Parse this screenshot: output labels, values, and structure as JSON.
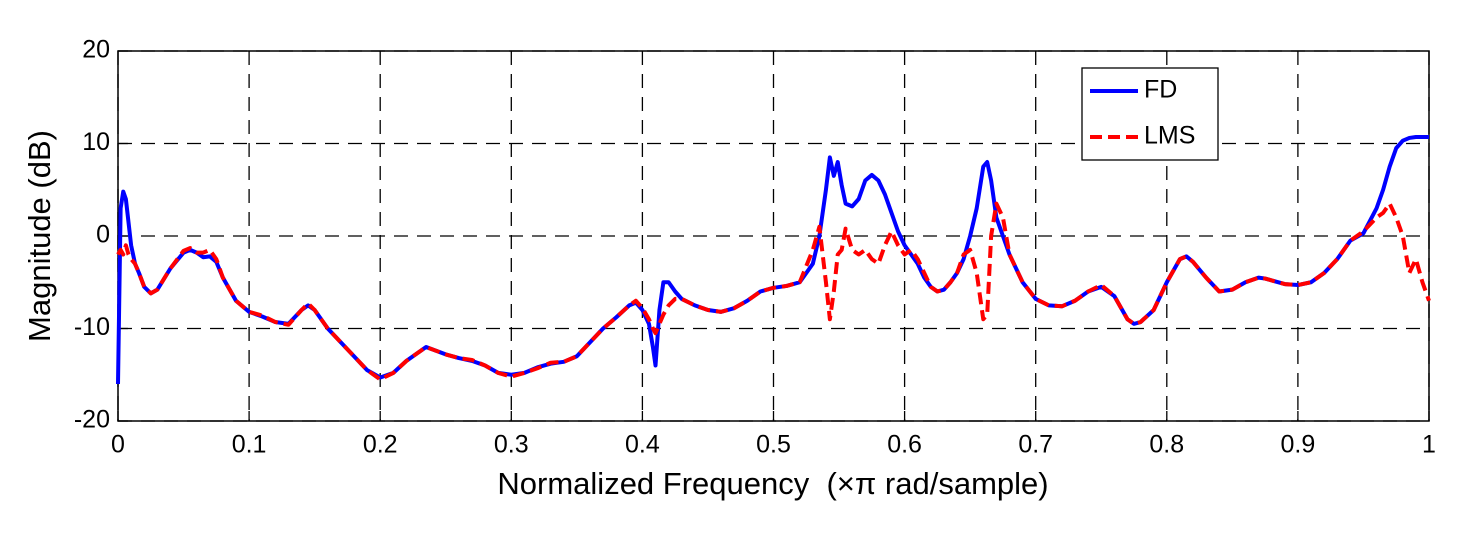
{
  "chart_data": {
    "type": "line",
    "xlabel": "Normalized Frequency  (×π rad/sample)",
    "ylabel": "Magnitude (dB)",
    "xlim": [
      0,
      1
    ],
    "ylim": [
      -20,
      20
    ],
    "xticks": [
      0,
      0.1,
      0.2,
      0.3,
      0.4,
      0.5,
      0.6,
      0.7,
      0.8,
      0.9,
      1
    ],
    "yticks": [
      -20,
      -10,
      0,
      10,
      20
    ],
    "grid": true,
    "legend": "upper right",
    "x": [
      0,
      0.002,
      0.004,
      0.006,
      0.008,
      0.01,
      0.013,
      0.016,
      0.02,
      0.025,
      0.03,
      0.04,
      0.05,
      0.055,
      0.06,
      0.065,
      0.07,
      0.075,
      0.08,
      0.09,
      0.1,
      0.11,
      0.12,
      0.13,
      0.14,
      0.145,
      0.15,
      0.16,
      0.17,
      0.18,
      0.19,
      0.2,
      0.21,
      0.22,
      0.235,
      0.25,
      0.26,
      0.27,
      0.28,
      0.29,
      0.3,
      0.31,
      0.32,
      0.33,
      0.34,
      0.35,
      0.36,
      0.37,
      0.38,
      0.39,
      0.395,
      0.4,
      0.405,
      0.408,
      0.41,
      0.413,
      0.416,
      0.42,
      0.425,
      0.43,
      0.44,
      0.45,
      0.46,
      0.47,
      0.48,
      0.49,
      0.5,
      0.51,
      0.52,
      0.53,
      0.535,
      0.54,
      0.543,
      0.546,
      0.549,
      0.552,
      0.555,
      0.56,
      0.565,
      0.57,
      0.575,
      0.58,
      0.585,
      0.59,
      0.595,
      0.6,
      0.605,
      0.61,
      0.615,
      0.62,
      0.625,
      0.63,
      0.635,
      0.64,
      0.645,
      0.65,
      0.655,
      0.66,
      0.663,
      0.666,
      0.67,
      0.675,
      0.68,
      0.69,
      0.7,
      0.71,
      0.72,
      0.73,
      0.74,
      0.75,
      0.76,
      0.77,
      0.775,
      0.78,
      0.79,
      0.8,
      0.81,
      0.815,
      0.82,
      0.83,
      0.84,
      0.85,
      0.86,
      0.87,
      0.875,
      0.88,
      0.89,
      0.9,
      0.91,
      0.92,
      0.93,
      0.94,
      0.95,
      0.96,
      0.965,
      0.97,
      0.975,
      0.98,
      0.985,
      0.99,
      0.995,
      1
    ],
    "series": [
      {
        "name": "FD",
        "color": "#0000ff",
        "dashed": false,
        "values": [
          -16,
          3,
          4.8,
          4,
          1.5,
          -1,
          -3,
          -4,
          -5.5,
          -6.2,
          -5.8,
          -3.5,
          -1.8,
          -1.5,
          -1.8,
          -2.3,
          -2.2,
          -2.8,
          -4.5,
          -7,
          -8.2,
          -8.7,
          -9.3,
          -9.5,
          -8,
          -7.5,
          -8,
          -10,
          -11.5,
          -13,
          -14.5,
          -15.3,
          -14.8,
          -13.5,
          -12,
          -12.8,
          -13.2,
          -13.5,
          -14,
          -14.8,
          -15,
          -14.8,
          -14.2,
          -13.8,
          -13.6,
          -13,
          -11.5,
          -10,
          -8.8,
          -7.5,
          -7.2,
          -8,
          -9.5,
          -12,
          -14,
          -8,
          -5,
          -5,
          -6,
          -6.8,
          -7.5,
          -8,
          -8.2,
          -7.8,
          -7,
          -6,
          -5.6,
          -5.4,
          -5,
          -3,
          0,
          5,
          8.5,
          6.5,
          8,
          5.5,
          3.5,
          3.2,
          4,
          6,
          6.6,
          6,
          4.5,
          2.5,
          0.5,
          -1,
          -2,
          -3,
          -4.5,
          -5.5,
          -6,
          -5.8,
          -5,
          -4,
          -2.5,
          0,
          3,
          7.5,
          8,
          6,
          2,
          0,
          -2,
          -5,
          -6.8,
          -7.5,
          -7.6,
          -7,
          -6,
          -5.5,
          -6.5,
          -9,
          -9.5,
          -9.3,
          -8,
          -5,
          -2.5,
          -2.2,
          -2.8,
          -4.5,
          -6,
          -5.8,
          -5,
          -4.5,
          -4.6,
          -4.8,
          -5.2,
          -5.3,
          -5,
          -4,
          -2.5,
          -0.5,
          0.3,
          3,
          5,
          7.5,
          9.5,
          10.3,
          10.6,
          10.7,
          10.7,
          10.7
        ]
      },
      {
        "name": "LMS",
        "color": "#ff0000",
        "dashed": true,
        "values": [
          -2,
          -1.5,
          -2,
          -1,
          -2,
          -2.5,
          -3,
          -4,
          -5.5,
          -6.2,
          -5.8,
          -3.5,
          -1.6,
          -1.3,
          -1.8,
          -1.8,
          -1.5,
          -2.5,
          -4.5,
          -7,
          -8.2,
          -8.6,
          -9.3,
          -9.6,
          -8,
          -7.3,
          -8,
          -10,
          -11.5,
          -13,
          -14.5,
          -15.5,
          -14.8,
          -13.5,
          -12,
          -12.8,
          -13.2,
          -13.4,
          -14,
          -14.8,
          -15.2,
          -14.8,
          -14.3,
          -13.7,
          -13.6,
          -13,
          -11.5,
          -10,
          -8.8,
          -7.5,
          -7,
          -7.8,
          -9,
          -10,
          -10.5,
          -9.5,
          -8.5,
          -7.5,
          -6.8,
          -6.8,
          -7.5,
          -8,
          -8.2,
          -7.8,
          -7,
          -6,
          -5.6,
          -5.4,
          -5,
          -1.5,
          1,
          -5,
          -9,
          -6,
          -2,
          -1.5,
          0.8,
          -1.5,
          -2,
          -1.5,
          -2.5,
          -3,
          -1,
          0.5,
          -1,
          -2,
          -1.5,
          -2.5,
          -4,
          -5.5,
          -6,
          -5.8,
          -5,
          -4,
          -2,
          -1.5,
          -4,
          -9,
          -8.5,
          0,
          3.5,
          2,
          -2,
          -5,
          -6.8,
          -7.5,
          -7.6,
          -7,
          -6,
          -5.3,
          -6.5,
          -9,
          -9.5,
          -9.3,
          -8,
          -5,
          -2.5,
          -2.2,
          -2.8,
          -4.5,
          -6,
          -5.8,
          -5,
          -4.5,
          -4.6,
          -4.8,
          -5.2,
          -5.3,
          -5,
          -4,
          -2.5,
          -0.5,
          0.5,
          2,
          2.5,
          3.5,
          2,
          0,
          -4,
          -2.5,
          -5,
          -7
        ]
      }
    ]
  }
}
